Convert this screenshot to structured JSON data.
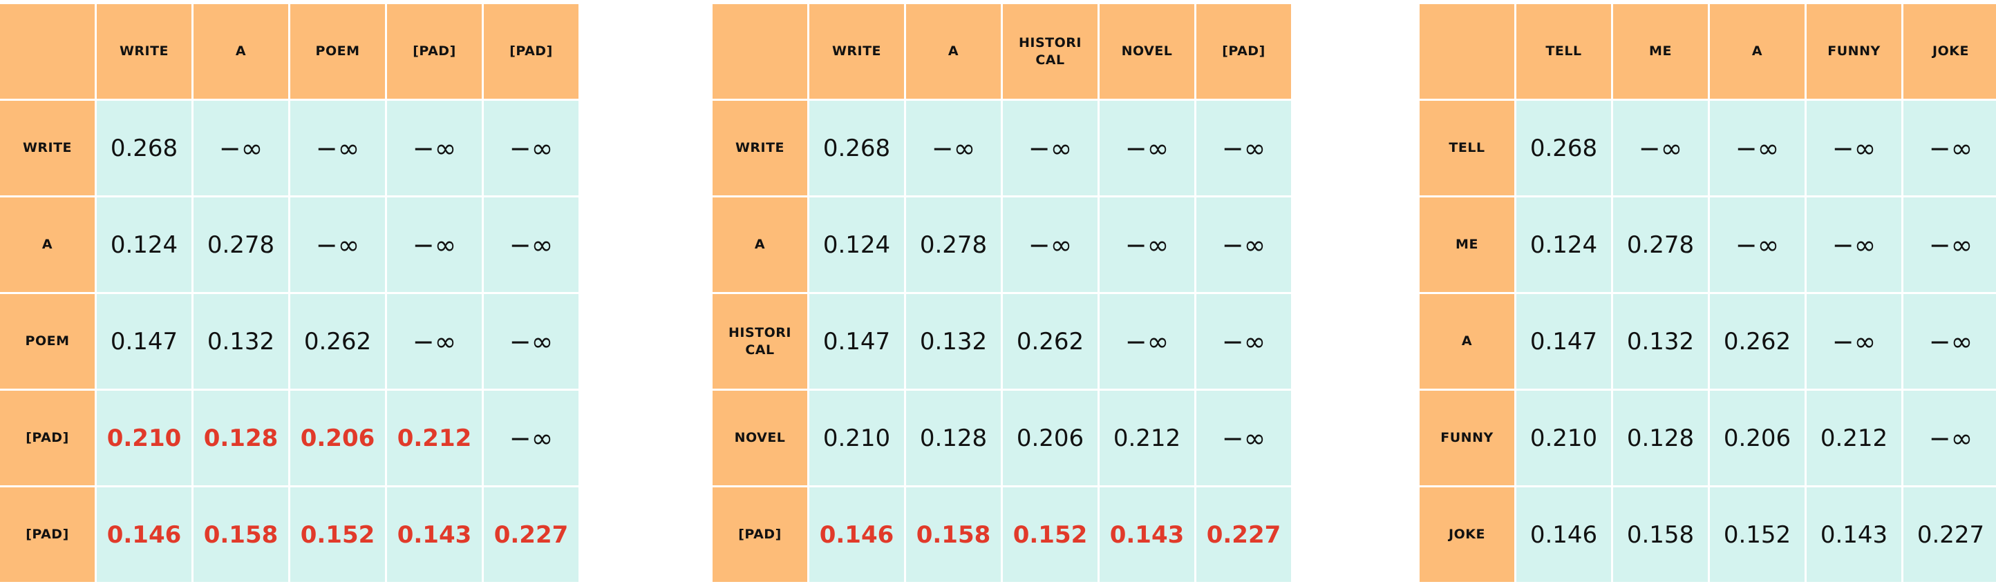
{
  "matrices": [
    {
      "tokens": [
        "WRITE",
        "A",
        "POEM",
        "[PAD]",
        "[PAD]"
      ],
      "rows": [
        [
          "0.268",
          "−∞",
          "−∞",
          "−∞",
          "−∞"
        ],
        [
          "0.124",
          "0.278",
          "−∞",
          "−∞",
          "−∞"
        ],
        [
          "0.147",
          "0.132",
          "0.262",
          "−∞",
          "−∞"
        ],
        [
          "0.210",
          "0.128",
          "0.206",
          "0.212",
          "−∞"
        ],
        [
          "0.146",
          "0.158",
          "0.152",
          "0.143",
          "0.227"
        ]
      ],
      "highlight": [
        [
          false,
          false,
          false,
          false,
          false
        ],
        [
          false,
          false,
          false,
          false,
          false
        ],
        [
          false,
          false,
          false,
          false,
          false
        ],
        [
          true,
          true,
          true,
          true,
          false
        ],
        [
          true,
          true,
          true,
          true,
          true
        ]
      ]
    },
    {
      "tokens": [
        "WRITE",
        "A",
        "HISTORI CAL",
        "NOVEL",
        "[PAD]"
      ],
      "rows": [
        [
          "0.268",
          "−∞",
          "−∞",
          "−∞",
          "−∞"
        ],
        [
          "0.124",
          "0.278",
          "−∞",
          "−∞",
          "−∞"
        ],
        [
          "0.147",
          "0.132",
          "0.262",
          "−∞",
          "−∞"
        ],
        [
          "0.210",
          "0.128",
          "0.206",
          "0.212",
          "−∞"
        ],
        [
          "0.146",
          "0.158",
          "0.152",
          "0.143",
          "0.227"
        ]
      ],
      "highlight": [
        [
          false,
          false,
          false,
          false,
          false
        ],
        [
          false,
          false,
          false,
          false,
          false
        ],
        [
          false,
          false,
          false,
          false,
          false
        ],
        [
          false,
          false,
          false,
          false,
          false
        ],
        [
          true,
          true,
          true,
          true,
          true
        ]
      ]
    },
    {
      "tokens": [
        "TELL",
        "ME",
        "A",
        "FUNNY",
        "JOKE"
      ],
      "rows": [
        [
          "0.268",
          "−∞",
          "−∞",
          "−∞",
          "−∞"
        ],
        [
          "0.124",
          "0.278",
          "−∞",
          "−∞",
          "−∞"
        ],
        [
          "0.147",
          "0.132",
          "0.262",
          "−∞",
          "−∞"
        ],
        [
          "0.210",
          "0.128",
          "0.206",
          "0.212",
          "−∞"
        ],
        [
          "0.146",
          "0.158",
          "0.152",
          "0.143",
          "0.227"
        ]
      ],
      "highlight": [
        [
          false,
          false,
          false,
          false,
          false
        ],
        [
          false,
          false,
          false,
          false,
          false
        ],
        [
          false,
          false,
          false,
          false,
          false
        ],
        [
          false,
          false,
          false,
          false,
          false
        ],
        [
          false,
          false,
          false,
          false,
          false
        ]
      ]
    }
  ],
  "colors": {
    "header_bg": "#FDBC78",
    "cell_bg": "#D4F3EF",
    "highlight_text": "#E13A2A",
    "normal_text": "#111111"
  }
}
